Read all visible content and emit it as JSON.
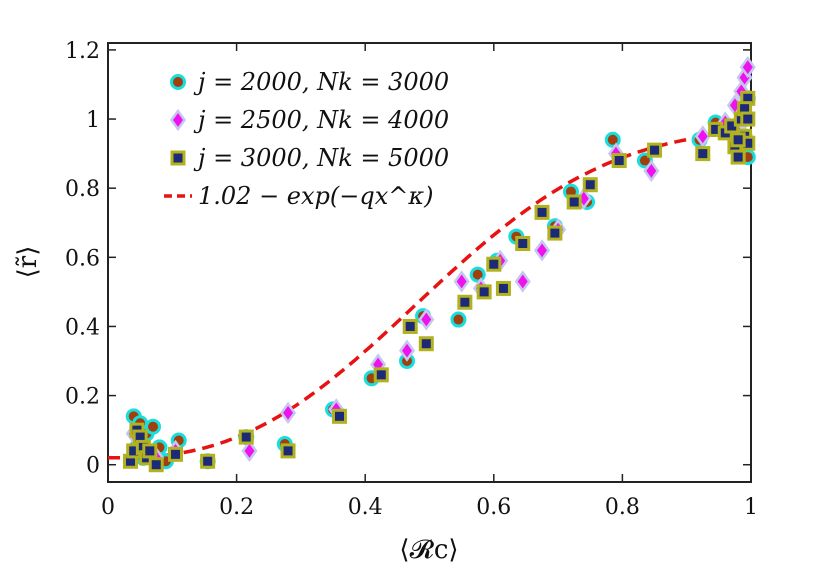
{
  "chart_data": {
    "type": "scatter",
    "xlabel": "⟨𝓡c⟩",
    "ylabel": "⟨r̃⟩",
    "xlim": [
      0,
      1
    ],
    "ylim": [
      -0.05,
      1.22
    ],
    "xticks": [
      0,
      0.2,
      0.4,
      0.6,
      0.8,
      1
    ],
    "xtick_labels": [
      "0",
      "0.2",
      "0.4",
      "0.6",
      "0.8",
      "1"
    ],
    "yticks": [
      0,
      0.2,
      0.4,
      0.6,
      0.8,
      1,
      1.2
    ],
    "ytick_labels": [
      "0",
      "0.2",
      "0.4",
      "0.6",
      "0.8",
      "1",
      "1.2"
    ],
    "legend_position": "top-left",
    "series": [
      {
        "name": "j = 2000, Nk = 3000",
        "marker": "circle",
        "fill": "#a0400f",
        "edge": "#18dede",
        "points": [
          [
            0.04,
            0.14
          ],
          [
            0.05,
            0.12
          ],
          [
            0.06,
            0.09
          ],
          [
            0.07,
            0.11
          ],
          [
            0.045,
            0.05
          ],
          [
            0.055,
            0.02
          ],
          [
            0.065,
            0.03
          ],
          [
            0.08,
            0.05
          ],
          [
            0.09,
            0.01
          ],
          [
            0.11,
            0.07
          ],
          [
            0.155,
            0.01
          ],
          [
            0.215,
            0.08
          ],
          [
            0.275,
            0.06
          ],
          [
            0.35,
            0.16
          ],
          [
            0.41,
            0.25
          ],
          [
            0.465,
            0.3
          ],
          [
            0.49,
            0.43
          ],
          [
            0.545,
            0.42
          ],
          [
            0.575,
            0.55
          ],
          [
            0.605,
            0.59
          ],
          [
            0.635,
            0.66
          ],
          [
            0.695,
            0.69
          ],
          [
            0.72,
            0.79
          ],
          [
            0.745,
            0.76
          ],
          [
            0.785,
            0.94
          ],
          [
            0.835,
            0.88
          ],
          [
            0.92,
            0.94
          ],
          [
            0.945,
            0.99
          ],
          [
            0.965,
            0.97
          ],
          [
            0.98,
            0.92
          ],
          [
            0.99,
            0.95
          ],
          [
            0.995,
            0.89
          ],
          [
            0.995,
            1.06
          ],
          [
            0.985,
            1.02
          ]
        ]
      },
      {
        "name": "j = 2500, Nk = 4000",
        "marker": "diamond",
        "fill": "#ee12ee",
        "edge": "#c6c6ee",
        "points": [
          [
            0.04,
            0.09
          ],
          [
            0.05,
            0.06
          ],
          [
            0.06,
            0.03
          ],
          [
            0.075,
            0.02
          ],
          [
            0.105,
            0.04
          ],
          [
            0.22,
            0.04
          ],
          [
            0.28,
            0.15
          ],
          [
            0.355,
            0.16
          ],
          [
            0.42,
            0.29
          ],
          [
            0.465,
            0.33
          ],
          [
            0.495,
            0.42
          ],
          [
            0.55,
            0.53
          ],
          [
            0.58,
            0.51
          ],
          [
            0.61,
            0.59
          ],
          [
            0.645,
            0.53
          ],
          [
            0.675,
            0.62
          ],
          [
            0.7,
            0.68
          ],
          [
            0.74,
            0.77
          ],
          [
            0.79,
            0.9
          ],
          [
            0.845,
            0.85
          ],
          [
            0.925,
            0.95
          ],
          [
            0.96,
            0.99
          ],
          [
            0.975,
            1.04
          ],
          [
            0.985,
            1.08
          ],
          [
            0.99,
            1.12
          ],
          [
            0.995,
            1.15
          ],
          [
            0.98,
            0.96
          ],
          [
            0.99,
            1.0
          ]
        ]
      },
      {
        "name": "j = 3000, Nk = 5000",
        "marker": "square",
        "fill": "#1c2a78",
        "edge": "#b2b21e",
        "points": [
          [
            0.035,
            0.01
          ],
          [
            0.04,
            0.04
          ],
          [
            0.045,
            0.1
          ],
          [
            0.05,
            0.08
          ],
          [
            0.055,
            0.05
          ],
          [
            0.06,
            0.02
          ],
          [
            0.065,
            0.04
          ],
          [
            0.075,
            0.0
          ],
          [
            0.105,
            0.03
          ],
          [
            0.155,
            0.01
          ],
          [
            0.215,
            0.08
          ],
          [
            0.28,
            0.04
          ],
          [
            0.36,
            0.14
          ],
          [
            0.425,
            0.26
          ],
          [
            0.47,
            0.4
          ],
          [
            0.495,
            0.35
          ],
          [
            0.555,
            0.47
          ],
          [
            0.585,
            0.5
          ],
          [
            0.6,
            0.58
          ],
          [
            0.615,
            0.51
          ],
          [
            0.645,
            0.64
          ],
          [
            0.675,
            0.73
          ],
          [
            0.695,
            0.67
          ],
          [
            0.725,
            0.76
          ],
          [
            0.75,
            0.81
          ],
          [
            0.795,
            0.88
          ],
          [
            0.85,
            0.91
          ],
          [
            0.925,
            0.9
          ],
          [
            0.945,
            0.97
          ],
          [
            0.96,
            0.96
          ],
          [
            0.97,
            0.98
          ],
          [
            0.975,
            0.92
          ],
          [
            0.98,
            0.89
          ],
          [
            0.985,
            1.0
          ],
          [
            0.99,
            0.95
          ],
          [
            0.995,
            1.06
          ],
          [
            0.995,
            0.93
          ],
          [
            0.99,
            1.03
          ],
          [
            0.98,
            0.94
          ],
          [
            0.995,
            1.0
          ]
        ]
      }
    ],
    "fit": {
      "name": "1.02 − exp(−qx^κ)",
      "color": "#e81212",
      "style": "dashed",
      "x_range": [
        0,
        1
      ],
      "y_start": 0.02,
      "y_end": 0.98
    }
  }
}
